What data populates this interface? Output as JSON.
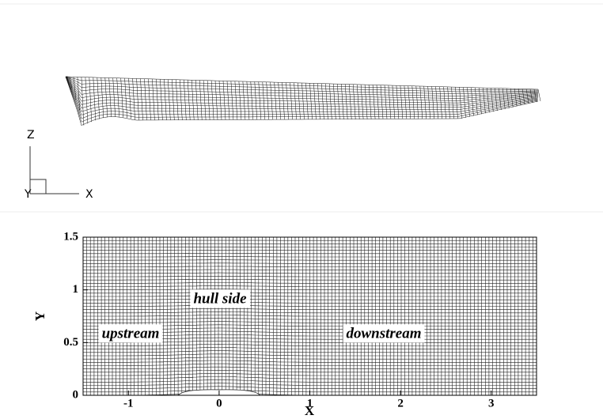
{
  "top_panel": {
    "axis_labels": {
      "z": "Z",
      "y": "Y",
      "x": "X"
    }
  },
  "chart_data": {
    "type": "grid",
    "xlabel": "X",
    "ylabel": "Y",
    "xlim": [
      -1.5,
      3.5
    ],
    "ylim": [
      0,
      1.5
    ],
    "xticks": [
      -1,
      0,
      1,
      2,
      3
    ],
    "yticks": [
      0,
      0.5,
      1,
      1.5
    ],
    "annotations": [
      "upstream",
      "hull side",
      "downstream"
    ]
  }
}
